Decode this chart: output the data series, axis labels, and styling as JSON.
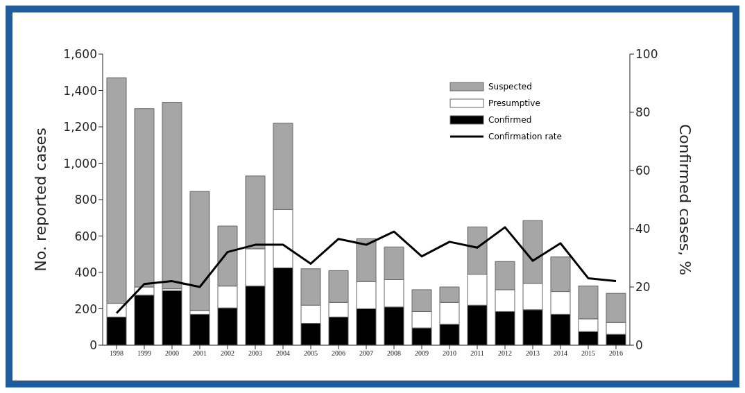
{
  "chart_data": {
    "type": "bar",
    "stacked": true,
    "ylabel": "No. reported cases",
    "y2label": "Confirmed cases, %",
    "categories": [
      "1998",
      "1999",
      "2000",
      "2001",
      "2002",
      "2003",
      "2004",
      "2005",
      "2006",
      "2007",
      "2008",
      "2009",
      "2010",
      "2011",
      "2012",
      "2013",
      "2014",
      "2015",
      "2016"
    ],
    "series": [
      {
        "name": "Confirmed",
        "color": "#000000",
        "values": [
          155,
          275,
          300,
          170,
          205,
          325,
          425,
          120,
          155,
          200,
          210,
          95,
          115,
          220,
          185,
          195,
          170,
          75,
          60
        ]
      },
      {
        "name": "Presumptive",
        "color": "#ffffff",
        "values": [
          75,
          45,
          10,
          20,
          120,
          205,
          320,
          100,
          80,
          150,
          150,
          90,
          120,
          170,
          120,
          145,
          125,
          70,
          65
        ]
      },
      {
        "name": "Suspected",
        "color": "#a6a6a6",
        "values": [
          1240,
          980,
          1025,
          655,
          330,
          400,
          475,
          200,
          175,
          235,
          180,
          120,
          85,
          260,
          155,
          345,
          190,
          180,
          160
        ]
      },
      {
        "name": "Confirmation rate",
        "type": "line",
        "axis": "y2",
        "color": "#000000",
        "marker": "none",
        "line_style": "solid",
        "values": [
          11,
          21,
          22,
          20,
          32,
          34.5,
          34.5,
          28,
          36.5,
          34.5,
          39,
          30.5,
          35.5,
          33.5,
          40.5,
          29,
          35,
          23,
          22
        ]
      }
    ],
    "ylim": [
      0,
      1600
    ],
    "yticks": [
      0,
      200,
      400,
      600,
      800,
      {
        "value": 1000,
        "label": "1,000"
      },
      {
        "value": 1200,
        "label": "1,200"
      },
      {
        "value": 1400,
        "label": "1,400"
      },
      {
        "value": 1600,
        "label": "1,600"
      }
    ],
    "y2lim": [
      0,
      100
    ],
    "y2ticks": [
      0,
      20,
      40,
      60,
      80,
      100
    ],
    "grid": false,
    "legend": "top right"
  }
}
